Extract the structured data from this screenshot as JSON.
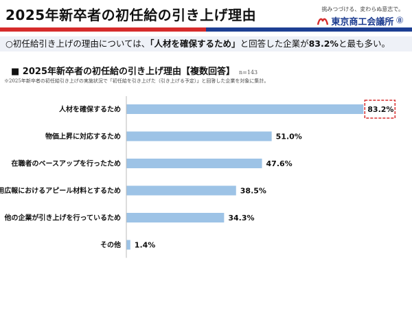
{
  "header": {
    "title": "2025年新卒者の初任給の引き上げ理由",
    "org_tagline": "挑みつづける、変わらぬ意志で。",
    "org_name": "東京商工会議所",
    "page_number": "⑧",
    "colors": {
      "red": "#d62b2b",
      "blue": "#1d3f93"
    }
  },
  "summary": {
    "prefix": "○初任給引き上げの理由については、",
    "highlight": "「人材を確保するため」",
    "middle": "と回答した企業が",
    "value": "83.2%",
    "suffix": "と最も多い。"
  },
  "chart_data": {
    "type": "bar",
    "orientation": "horizontal",
    "title": "■ 2025年新卒者の初任給の引き上げ理由【複数回答】",
    "n_label": "n=143",
    "note": "※2025年新卒者の初任給引き上げの実施状況で「初任給を引き上げた（引き上げる予定）」と回答した企業を対象に集計。",
    "categories": [
      "人材を確保するため",
      "物価上昇に対応するため",
      "在職者のベースアップを行ったため",
      "採用広報におけるアピール材料とするため",
      "他の企業が引き上げを行っているため",
      "その他"
    ],
    "values": [
      83.2,
      51.0,
      47.6,
      38.5,
      34.3,
      1.4
    ],
    "value_labels": [
      "83.2%",
      "51.0%",
      "47.6%",
      "38.5%",
      "34.3%",
      "1.4%"
    ],
    "highlight_index": 0,
    "xlim": [
      0,
      100
    ],
    "grid": false,
    "colors": {
      "bar": "#9dc3e6",
      "highlight_box": "#d62b2b"
    }
  }
}
